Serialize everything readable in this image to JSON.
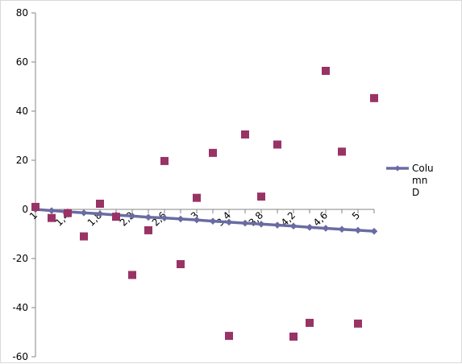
{
  "chart_data": {
    "type": "line",
    "x_tick_labels": [
      "1",
      "1,4",
      "1,8",
      "2,2",
      "2,6",
      "3",
      "3,4",
      "3,8",
      "4,2",
      "4,6",
      "5"
    ],
    "x": [
      1,
      1.2,
      1.4,
      1.6,
      1.8,
      2,
      2.2,
      2.4,
      2.6,
      2.8,
      3,
      3.2,
      3.4,
      3.6,
      3.8,
      4,
      4.2,
      4.4,
      4.6,
      4.8,
      5,
      5.2
    ],
    "ylim": [
      -60,
      80
    ],
    "y_ticks": [
      -60,
      -40,
      -20,
      0,
      20,
      40,
      60,
      80
    ],
    "grid": false,
    "legend_position": "right",
    "series": [
      {
        "name": "Column D",
        "kind": "line",
        "color": "#6B6BA3",
        "values": [
          0,
          -0.5,
          -1,
          -1.4,
          -1.8,
          -2.3,
          -2.7,
          -3.2,
          -3.5,
          -3.9,
          -4.3,
          -4.8,
          -5.2,
          -5.6,
          -6,
          -6.4,
          -6.8,
          -7.3,
          -7.7,
          -8.1,
          -8.5,
          -8.9
        ]
      },
      {
        "kind": "scatter",
        "color": "#993366",
        "values": [
          1,
          -3.5,
          -1.5,
          -11,
          2.3,
          -3,
          -26.7,
          -8.5,
          19.7,
          -22.3,
          4.7,
          23,
          -51.5,
          30.5,
          5.2,
          26.4,
          -51.8,
          -46.2,
          56.4,
          23.5,
          -46.5,
          45.3
        ]
      }
    ]
  }
}
